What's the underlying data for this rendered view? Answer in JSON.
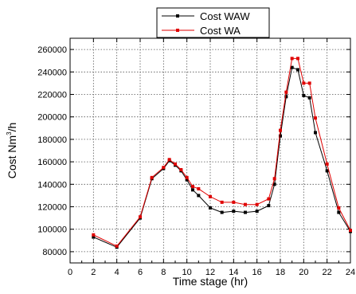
{
  "chart_data": {
    "type": "line",
    "xlabel": "Time stage (hr)",
    "ylabel": {
      "prefix": "Cost  Nm",
      "sup": "3",
      "suffix": "/h"
    },
    "xlim": [
      0,
      24
    ],
    "ylim": [
      70000,
      270000
    ],
    "xticks": [
      0,
      2,
      4,
      6,
      8,
      10,
      12,
      14,
      16,
      18,
      20,
      22,
      24
    ],
    "yticks": [
      80000,
      100000,
      120000,
      140000,
      160000,
      180000,
      200000,
      220000,
      240000,
      260000
    ],
    "grid": true,
    "legend": "top-center",
    "series": [
      {
        "name": "Cost WAW",
        "color": "#000000",
        "x": [
          2,
          4,
          6,
          7,
          8,
          8.5,
          9,
          9.5,
          10,
          10.5,
          11,
          12,
          13,
          14,
          15,
          16,
          17,
          17.5,
          18,
          18.5,
          19,
          19.5,
          20,
          20.5,
          21,
          22,
          23,
          24
        ],
        "y": [
          93000,
          84000,
          110000,
          145000,
          154000,
          161000,
          157000,
          152000,
          144000,
          135000,
          130000,
          119000,
          115000,
          116000,
          115000,
          116000,
          121000,
          140000,
          183000,
          218000,
          244000,
          242000,
          219000,
          217000,
          186000,
          152000,
          115000,
          98000
        ]
      },
      {
        "name": "Cost WA",
        "color": "#e00000",
        "x": [
          2,
          4,
          6,
          7,
          8,
          8.5,
          9,
          9.5,
          10,
          10.5,
          11,
          12,
          13,
          14,
          15,
          16,
          17,
          17.5,
          18,
          18.5,
          19,
          19.5,
          20,
          20.5,
          21,
          22,
          23,
          24
        ],
        "y": [
          95000,
          85000,
          111000,
          146000,
          155000,
          162000,
          158000,
          153000,
          146000,
          138000,
          136000,
          129000,
          124000,
          124000,
          122000,
          122000,
          127000,
          145000,
          188000,
          222000,
          252000,
          252000,
          230000,
          230000,
          199000,
          158000,
          119000,
          99000
        ]
      }
    ]
  }
}
